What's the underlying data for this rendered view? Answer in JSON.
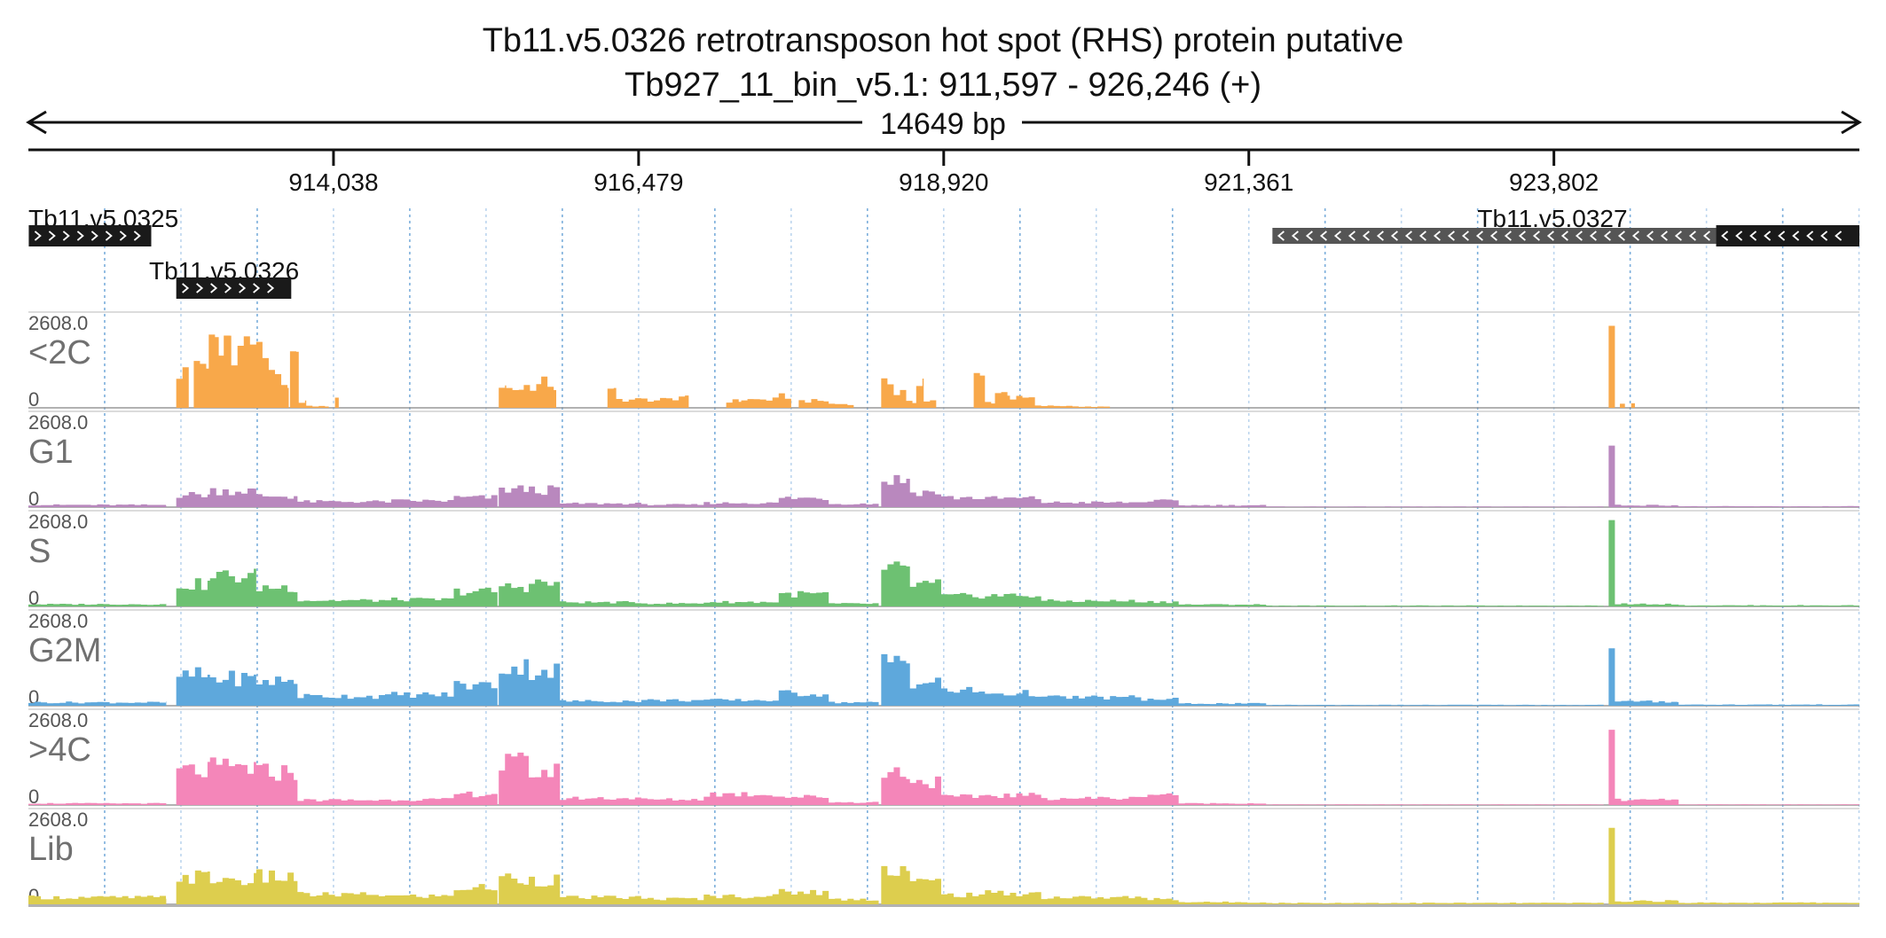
{
  "chart_data": {
    "type": "area",
    "title": "Tb11.v5.0326  retrotransposon hot spot (RHS) protein  putative",
    "subtitle": "Tb927_11_bin_v5.1: 911,597 - 926,246 (+)",
    "span_label": "14649 bp",
    "xlim": [
      911597,
      926246
    ],
    "x_ticks": [
      {
        "value": 914038,
        "label": "914,038"
      },
      {
        "value": 916479,
        "label": "916,479"
      },
      {
        "value": 918920,
        "label": "918,920"
      },
      {
        "value": 921361,
        "label": "921,361"
      },
      {
        "value": 923802,
        "label": "923,802"
      }
    ],
    "genes": [
      {
        "name": "Tb11.v5.0325",
        "start": 911600,
        "end": 912580,
        "strand": "+"
      },
      {
        "name": "Tb11.v5.0326",
        "start": 912780,
        "end": 913700,
        "strand": "+"
      },
      {
        "name": "Tb11.v5.0327",
        "start": 921550,
        "end": 926246,
        "strand": "-",
        "cds_start": 925100
      }
    ],
    "ylim": [
      0,
      2608.0
    ],
    "ymax_label": "2608.0",
    "ymin_label": "0",
    "bin_bp": 50,
    "series": [
      {
        "name": "<2C",
        "color": "#F8A84A",
        "regions": [
          [
            912780,
            912880,
            1300
          ],
          [
            912920,
            913040,
            1650
          ],
          [
            913040,
            913120,
            2250
          ],
          [
            913120,
            913160,
            1900
          ],
          [
            913160,
            913220,
            2600
          ],
          [
            913220,
            913320,
            2150
          ],
          [
            913320,
            913420,
            2450
          ],
          [
            913420,
            913520,
            2000
          ],
          [
            913520,
            913620,
            1450
          ],
          [
            913620,
            913680,
            650
          ],
          [
            913690,
            913760,
            1700
          ],
          [
            913760,
            913820,
            250
          ],
          [
            913820,
            914000,
            60
          ],
          [
            914050,
            914080,
            300
          ],
          [
            915360,
            915420,
            900
          ],
          [
            915420,
            915560,
            700
          ],
          [
            915560,
            915700,
            800
          ],
          [
            915700,
            915800,
            900
          ],
          [
            915800,
            915820,
            750
          ],
          [
            916230,
            916300,
            600
          ],
          [
            916300,
            916600,
            300
          ],
          [
            916600,
            916800,
            280
          ],
          [
            916800,
            916880,
            450
          ],
          [
            917180,
            917300,
            250
          ],
          [
            917300,
            917600,
            300
          ],
          [
            917600,
            917700,
            420
          ],
          [
            917760,
            918000,
            250
          ],
          [
            918000,
            918200,
            140
          ],
          [
            918420,
            918520,
            950
          ],
          [
            918520,
            918620,
            550
          ],
          [
            918620,
            918700,
            200
          ],
          [
            918700,
            918760,
            1050
          ],
          [
            918760,
            918860,
            250
          ],
          [
            919160,
            919250,
            1100
          ],
          [
            919250,
            919330,
            200
          ],
          [
            919330,
            919450,
            550
          ],
          [
            919450,
            919650,
            350
          ],
          [
            919650,
            920000,
            70
          ],
          [
            920000,
            920250,
            40
          ],
          [
            924240,
            924290,
            2600
          ],
          [
            924330,
            924370,
            200
          ],
          [
            924420,
            924450,
            150
          ]
        ]
      },
      {
        "name": "G1",
        "color": "#B988BE",
        "regions": [
          [
            911597,
            912700,
            80
          ],
          [
            912780,
            913050,
            450
          ],
          [
            913050,
            913420,
            600
          ],
          [
            913420,
            913750,
            400
          ],
          [
            913750,
            914500,
            200
          ],
          [
            914500,
            915000,
            230
          ],
          [
            915000,
            915350,
            350
          ],
          [
            915360,
            915600,
            650
          ],
          [
            915600,
            915850,
            620
          ],
          [
            915850,
            916500,
            130
          ],
          [
            916500,
            917000,
            90
          ],
          [
            917000,
            917600,
            150
          ],
          [
            917600,
            918000,
            330
          ],
          [
            918000,
            918400,
            120
          ],
          [
            918420,
            918650,
            1000
          ],
          [
            918650,
            918900,
            550
          ],
          [
            918900,
            919200,
            350
          ],
          [
            919200,
            919700,
            320
          ],
          [
            919700,
            920500,
            170
          ],
          [
            920500,
            920800,
            220
          ],
          [
            920800,
            921500,
            70
          ],
          [
            921500,
            924200,
            20
          ],
          [
            924240,
            924290,
            2600
          ],
          [
            924290,
            924800,
            70
          ],
          [
            924800,
            926246,
            30
          ]
        ]
      },
      {
        "name": "S",
        "color": "#6DC172",
        "regions": [
          [
            911597,
            912700,
            80
          ],
          [
            912780,
            913050,
            800
          ],
          [
            913050,
            913420,
            1100
          ],
          [
            913420,
            913750,
            700
          ],
          [
            913750,
            914500,
            220
          ],
          [
            914500,
            915000,
            250
          ],
          [
            915000,
            915350,
            550
          ],
          [
            915360,
            915600,
            720
          ],
          [
            915600,
            915850,
            850
          ],
          [
            915850,
            916500,
            150
          ],
          [
            916500,
            917000,
            110
          ],
          [
            917000,
            917600,
            160
          ],
          [
            917600,
            918000,
            450
          ],
          [
            918000,
            918400,
            100
          ],
          [
            918420,
            918650,
            1300
          ],
          [
            918650,
            918900,
            800
          ],
          [
            918900,
            919200,
            380
          ],
          [
            919200,
            919700,
            400
          ],
          [
            919700,
            920500,
            200
          ],
          [
            920500,
            920800,
            170
          ],
          [
            920800,
            921500,
            70
          ],
          [
            921500,
            924200,
            30
          ],
          [
            924240,
            924290,
            2600
          ],
          [
            924290,
            924800,
            90
          ],
          [
            924800,
            926246,
            40
          ]
        ]
      },
      {
        "name": "G2M",
        "color": "#5EA8DC",
        "regions": [
          [
            911597,
            912700,
            120
          ],
          [
            912780,
            913050,
            1100
          ],
          [
            913050,
            913420,
            1000
          ],
          [
            913420,
            913750,
            900
          ],
          [
            913750,
            914500,
            350
          ],
          [
            914500,
            915000,
            400
          ],
          [
            915000,
            915350,
            750
          ],
          [
            915360,
            915600,
            1400
          ],
          [
            915600,
            915850,
            1300
          ],
          [
            915850,
            916500,
            170
          ],
          [
            916500,
            917000,
            200
          ],
          [
            917000,
            917600,
            200
          ],
          [
            917600,
            918000,
            450
          ],
          [
            918000,
            918400,
            120
          ],
          [
            918420,
            918650,
            1650
          ],
          [
            918650,
            918900,
            850
          ],
          [
            918900,
            919200,
            550
          ],
          [
            919200,
            919700,
            450
          ],
          [
            919700,
            920500,
            300
          ],
          [
            920500,
            920800,
            230
          ],
          [
            920800,
            921500,
            80
          ],
          [
            921500,
            924200,
            30
          ],
          [
            924240,
            924290,
            2600
          ],
          [
            924290,
            924800,
            150
          ],
          [
            924800,
            926246,
            40
          ]
        ]
      },
      {
        "name": ">4C",
        "color": "#F486B9",
        "regions": [
          [
            911597,
            912700,
            60
          ],
          [
            912780,
            913050,
            1250
          ],
          [
            913050,
            913420,
            1350
          ],
          [
            913420,
            913750,
            1200
          ],
          [
            913750,
            914500,
            180
          ],
          [
            914500,
            915000,
            200
          ],
          [
            915000,
            915350,
            400
          ],
          [
            915360,
            915600,
            1500
          ],
          [
            915600,
            915850,
            1200
          ],
          [
            915850,
            916500,
            250
          ],
          [
            916500,
            917000,
            200
          ],
          [
            917000,
            917600,
            400
          ],
          [
            917600,
            918000,
            300
          ],
          [
            918000,
            918400,
            100
          ],
          [
            918420,
            918650,
            1200
          ],
          [
            918650,
            918900,
            850
          ],
          [
            918900,
            919200,
            300
          ],
          [
            919200,
            919700,
            350
          ],
          [
            919700,
            920500,
            250
          ],
          [
            920500,
            920800,
            400
          ],
          [
            920800,
            921500,
            60
          ],
          [
            921500,
            924200,
            20
          ],
          [
            924240,
            924290,
            2600
          ],
          [
            924290,
            924800,
            180
          ],
          [
            924800,
            926246,
            20
          ]
        ]
      },
      {
        "name": "Lib",
        "color": "#DDCE4E",
        "regions": [
          [
            911597,
            912700,
            250
          ],
          [
            912780,
            913050,
            1000
          ],
          [
            913050,
            913420,
            900
          ],
          [
            913420,
            913750,
            1000
          ],
          [
            913750,
            914500,
            350
          ],
          [
            914500,
            915000,
            300
          ],
          [
            915000,
            915350,
            600
          ],
          [
            915360,
            915600,
            950
          ],
          [
            915600,
            915850,
            900
          ],
          [
            915850,
            916500,
            250
          ],
          [
            916500,
            917000,
            200
          ],
          [
            917000,
            917600,
            300
          ],
          [
            917600,
            918000,
            450
          ],
          [
            918000,
            918400,
            180
          ],
          [
            918420,
            918650,
            1300
          ],
          [
            918650,
            918900,
            800
          ],
          [
            918900,
            919200,
            350
          ],
          [
            919200,
            919700,
            400
          ],
          [
            919700,
            920500,
            250
          ],
          [
            920500,
            920800,
            200
          ],
          [
            920800,
            921500,
            80
          ],
          [
            921500,
            924200,
            50
          ],
          [
            924240,
            924290,
            2600
          ],
          [
            924290,
            924800,
            120
          ],
          [
            924800,
            926246,
            60
          ]
        ]
      }
    ],
    "grid": true,
    "legend": "none"
  }
}
